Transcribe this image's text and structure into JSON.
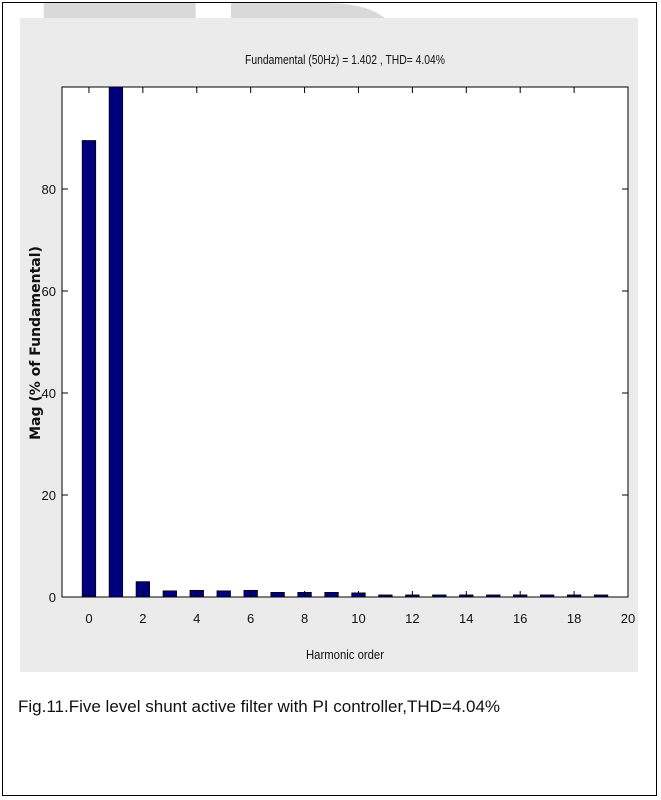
{
  "watermark": {
    "text": "ER",
    "color": "#d9d9d9"
  },
  "chart_data": {
    "type": "bar",
    "title": "Fundamental (50Hz) = 1.402 , THD= 4.04%",
    "xlabel": "Harmonic order",
    "ylabel": "Mag (% of Fundamental)",
    "x": [
      0,
      1,
      2,
      3,
      4,
      5,
      6,
      7,
      8,
      9,
      10,
      11,
      12,
      13,
      14,
      15,
      16,
      17,
      18,
      19
    ],
    "values": [
      89.5,
      100,
      3.0,
      1.2,
      1.3,
      1.2,
      1.3,
      0.9,
      0.9,
      0.9,
      0.8,
      0.4,
      0.4,
      0.4,
      0.4,
      0.4,
      0.4,
      0.4,
      0.4,
      0.4
    ],
    "xlim": [
      -1,
      20
    ],
    "ylim": [
      0,
      100
    ],
    "xticks": [
      0,
      2,
      4,
      6,
      8,
      10,
      12,
      14,
      16,
      18,
      20
    ],
    "yticks": [
      0,
      20,
      40,
      60,
      80
    ],
    "bar_color": "#00007f",
    "grid": false
  },
  "caption": "Fig.11.Five level shunt active filter with PI controller,THD=4.04%"
}
